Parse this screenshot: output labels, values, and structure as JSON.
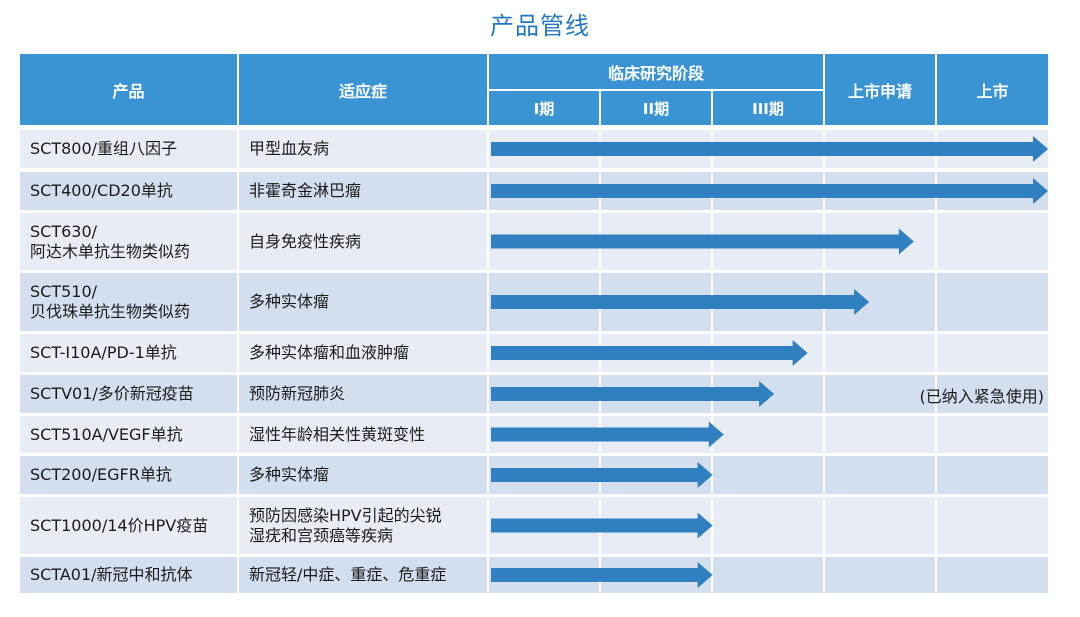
{
  "title": "产品管线",
  "header": {
    "product": "产品",
    "indication": "适应症",
    "clinical": "临床研究阶段",
    "phase1": "I期",
    "phase2": "II期",
    "phase3": "III期",
    "application": "上市申请",
    "market": "上市"
  },
  "rows": [
    {
      "product": "SCT800/重组八因子",
      "indication": "甲型血友病"
    },
    {
      "product": "SCT400/CD20单抗",
      "indication": "非霍奇金淋巴瘤"
    },
    {
      "product": "SCT630/\n阿达木单抗生物类似药",
      "indication": "自身免疫性疾病"
    },
    {
      "product": "SCT510/\n贝伐珠单抗生物类似药",
      "indication": "多种实体瘤"
    },
    {
      "product": "SCT-I10A/PD-1单抗",
      "indication": "多种实体瘤和血液肿瘤"
    },
    {
      "product": "SCTV01/多价新冠疫苗",
      "indication": "预防新冠肺炎",
      "note": "(已纳入紧急使用)"
    },
    {
      "product": "SCT510A/VEGF单抗",
      "indication": "湿性年龄相关性黄斑变性"
    },
    {
      "product": "SCT200/EGFR单抗",
      "indication": "多种实体瘤"
    },
    {
      "product": "SCT1000/14价HPV疫苗",
      "indication": "预防因感染HPV引起的尖锐\n湿疣和宫颈癌等疾病"
    },
    {
      "product": "SCTA01/新冠中和抗体",
      "indication": "新冠轻/中症、重症、危重症"
    }
  ],
  "chart_data": {
    "type": "bar",
    "orientation": "horizontal",
    "stages": [
      "I期",
      "II期",
      "III期",
      "上市申请",
      "上市"
    ],
    "categories": [
      "SCT800/重组八因子",
      "SCT400/CD20单抗",
      "SCT630/阿达木单抗生物类似药",
      "SCT510/贝伐珠单抗生物类似药",
      "SCT-I10A/PD-1单抗",
      "SCTV01/多价新冠疫苗",
      "SCT510A/VEGF单抗",
      "SCT200/EGFR单抗",
      "SCT1000/14价HPV疫苗",
      "SCTA01/新冠中和抗体"
    ],
    "values": [
      5.0,
      5.0,
      3.8,
      3.4,
      2.85,
      2.55,
      2.1,
      2.0,
      2.0,
      2.0
    ],
    "xlim": [
      0,
      5
    ],
    "bar_color": "#2f7fc1"
  }
}
